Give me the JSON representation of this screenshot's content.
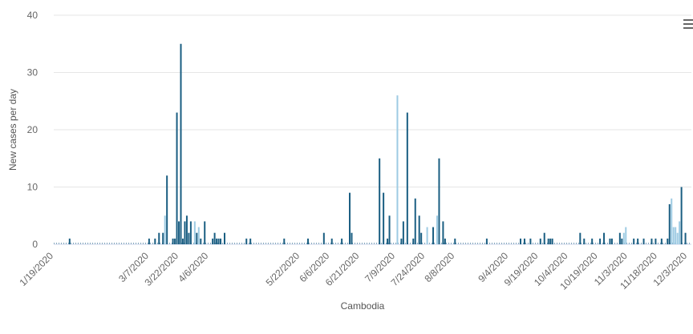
{
  "chart_data": {
    "type": "bar",
    "xlabel": "Cambodia",
    "ylabel": "New cases per day",
    "ylim": [
      0,
      40
    ],
    "yticks": [
      0,
      10,
      20,
      30,
      40
    ],
    "grid": true,
    "x_tick_labels": [
      "1/19/2020",
      "3/7/2020",
      "3/22/2020",
      "4/6/2020",
      "5/22/2020",
      "6/6/2020",
      "6/21/2020",
      "7/9/2020",
      "7/24/2020",
      "8/8/2020",
      "9/4/2020",
      "9/19/2020",
      "10/4/2020",
      "10/19/2020",
      "11/3/2020",
      "11/18/2020",
      "12/3/2020"
    ],
    "colors": {
      "dark": "#1a5e82",
      "light": "#9ecbe3",
      "grid": "#e6e6e6",
      "axis": "#ccd6eb"
    },
    "series": [
      {
        "values": [
          {
            "x": "1/19/2020",
            "y": 0
          },
          {
            "x": "1/27/2020",
            "y": 1
          },
          {
            "x": "3/7/2020",
            "y": 1
          },
          {
            "x": "3/10/2020",
            "y": 1
          },
          {
            "x": "3/12/2020",
            "y": 2
          },
          {
            "x": "3/14/2020",
            "y": 2
          },
          {
            "x": "3/15/2020",
            "y": 5,
            "color": "light"
          },
          {
            "x": "3/16/2020",
            "y": 12
          },
          {
            "x": "3/19/2020",
            "y": 1
          },
          {
            "x": "3/20/2020",
            "y": 1
          },
          {
            "x": "3/21/2020",
            "y": 23
          },
          {
            "x": "3/22/2020",
            "y": 4
          },
          {
            "x": "3/23/2020",
            "y": 35
          },
          {
            "x": "3/24/2020",
            "y": 1
          },
          {
            "x": "3/25/2020",
            "y": 4
          },
          {
            "x": "3/26/2020",
            "y": 5
          },
          {
            "x": "3/27/2020",
            "y": 2
          },
          {
            "x": "3/28/2020",
            "y": 4
          },
          {
            "x": "3/30/2020",
            "y": 4,
            "color": "light"
          },
          {
            "x": "3/31/2020",
            "y": 2
          },
          {
            "x": "4/1/2020",
            "y": 3,
            "color": "light"
          },
          {
            "x": "4/2/2020",
            "y": 1
          },
          {
            "x": "4/4/2020",
            "y": 4
          },
          {
            "x": "4/8/2020",
            "y": 1
          },
          {
            "x": "4/9/2020",
            "y": 2
          },
          {
            "x": "4/10/2020",
            "y": 1
          },
          {
            "x": "4/11/2020",
            "y": 1
          },
          {
            "x": "4/12/2020",
            "y": 1
          },
          {
            "x": "4/14/2020",
            "y": 2
          },
          {
            "x": "4/25/2020",
            "y": 1
          },
          {
            "x": "4/27/2020",
            "y": 1
          },
          {
            "x": "5/14/2020",
            "y": 1
          },
          {
            "x": "5/26/2020",
            "y": 1
          },
          {
            "x": "6/3/2020",
            "y": 2
          },
          {
            "x": "6/7/2020",
            "y": 1
          },
          {
            "x": "6/12/2020",
            "y": 1
          },
          {
            "x": "6/16/2020",
            "y": 9
          },
          {
            "x": "6/17/2020",
            "y": 2
          },
          {
            "x": "7/1/2020",
            "y": 15
          },
          {
            "x": "7/3/2020",
            "y": 9
          },
          {
            "x": "7/5/2020",
            "y": 1
          },
          {
            "x": "7/6/2020",
            "y": 5
          },
          {
            "x": "7/10/2020",
            "y": 26,
            "color": "light"
          },
          {
            "x": "7/12/2020",
            "y": 1
          },
          {
            "x": "7/13/2020",
            "y": 4
          },
          {
            "x": "7/15/2020",
            "y": 23
          },
          {
            "x": "7/18/2020",
            "y": 1
          },
          {
            "x": "7/19/2020",
            "y": 8
          },
          {
            "x": "7/21/2020",
            "y": 5
          },
          {
            "x": "7/22/2020",
            "y": 2
          },
          {
            "x": "7/25/2020",
            "y": 3,
            "color": "light"
          },
          {
            "x": "7/28/2020",
            "y": 3
          },
          {
            "x": "7/30/2020",
            "y": 5,
            "color": "light"
          },
          {
            "x": "7/31/2020",
            "y": 15
          },
          {
            "x": "8/2/2020",
            "y": 4
          },
          {
            "x": "8/3/2020",
            "y": 1
          },
          {
            "x": "8/8/2020",
            "y": 1
          },
          {
            "x": "8/24/2020",
            "y": 1
          },
          {
            "x": "9/10/2020",
            "y": 1
          },
          {
            "x": "9/12/2020",
            "y": 1
          },
          {
            "x": "9/15/2020",
            "y": 1
          },
          {
            "x": "9/20/2020",
            "y": 1
          },
          {
            "x": "9/22/2020",
            "y": 2
          },
          {
            "x": "9/24/2020",
            "y": 1
          },
          {
            "x": "9/25/2020",
            "y": 1
          },
          {
            "x": "9/26/2020",
            "y": 1
          },
          {
            "x": "10/10/2020",
            "y": 2
          },
          {
            "x": "10/12/2020",
            "y": 1
          },
          {
            "x": "10/16/2020",
            "y": 1
          },
          {
            "x": "10/20/2020",
            "y": 1
          },
          {
            "x": "10/22/2020",
            "y": 2
          },
          {
            "x": "10/25/2020",
            "y": 1
          },
          {
            "x": "10/26/2020",
            "y": 1
          },
          {
            "x": "10/30/2020",
            "y": 2
          },
          {
            "x": "10/31/2020",
            "y": 1
          },
          {
            "x": "11/1/2020",
            "y": 2,
            "color": "light"
          },
          {
            "x": "11/2/2020",
            "y": 3,
            "color": "light"
          },
          {
            "x": "11/6/2020",
            "y": 1
          },
          {
            "x": "11/8/2020",
            "y": 1
          },
          {
            "x": "11/11/2020",
            "y": 1
          },
          {
            "x": "11/15/2020",
            "y": 1
          },
          {
            "x": "11/17/2020",
            "y": 1
          },
          {
            "x": "11/20/2020",
            "y": 1
          },
          {
            "x": "11/23/2020",
            "y": 1
          },
          {
            "x": "11/24/2020",
            "y": 7
          },
          {
            "x": "11/25/2020",
            "y": 8,
            "color": "light"
          },
          {
            "x": "11/26/2020",
            "y": 3,
            "color": "light"
          },
          {
            "x": "11/27/2020",
            "y": 3,
            "color": "light"
          },
          {
            "x": "11/28/2020",
            "y": 2,
            "color": "light"
          },
          {
            "x": "11/29/2020",
            "y": 4,
            "color": "light"
          },
          {
            "x": "11/30/2020",
            "y": 10
          },
          {
            "x": "12/2/2020",
            "y": 2
          }
        ]
      }
    ]
  },
  "toolbar": {
    "menu_icon": "hamburger-menu-icon"
  }
}
